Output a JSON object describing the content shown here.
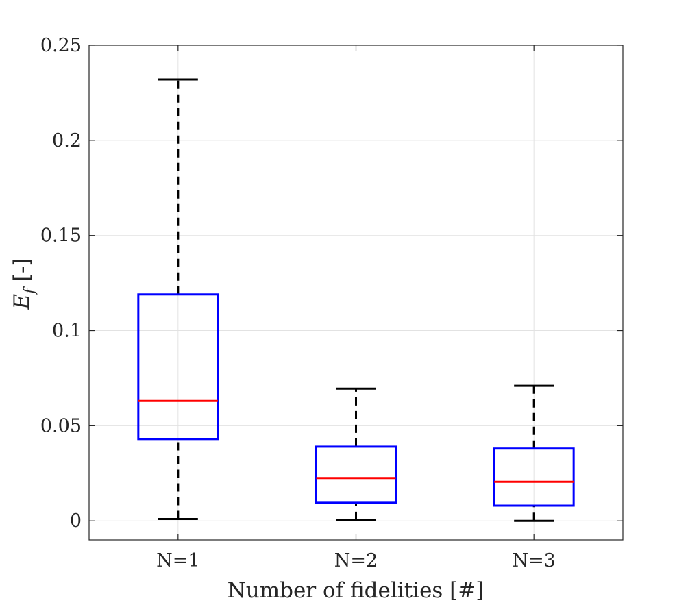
{
  "chart_data": {
    "type": "box",
    "title": "",
    "xlabel": "Number of fidelities [#]",
    "ylabel": {
      "symbol": "E",
      "subscript": "f",
      "unit": "[-]"
    },
    "ylim": [
      -0.01,
      0.25
    ],
    "yticks": [
      0,
      0.05,
      0.1,
      0.15,
      0.2,
      0.25
    ],
    "ytick_labels": [
      "0",
      "0.05",
      "0.1",
      "0.15",
      "0.2",
      "0.25"
    ],
    "grid": true,
    "categories": [
      "N=1",
      "N=2",
      "N=3"
    ],
    "boxes": [
      {
        "label": "N=1",
        "whisker_low": 0.001,
        "q1": 0.043,
        "median": 0.063,
        "q3": 0.119,
        "whisker_high": 0.232
      },
      {
        "label": "N=2",
        "whisker_low": 0.0005,
        "q1": 0.0095,
        "median": 0.0225,
        "q3": 0.039,
        "whisker_high": 0.0695
      },
      {
        "label": "N=3",
        "whisker_low": 0.0,
        "q1": 0.008,
        "median": 0.0205,
        "q3": 0.038,
        "whisker_high": 0.071
      }
    ],
    "colors": {
      "box": "#0000ff",
      "median": "#ff0000",
      "whisker": "#000000",
      "grid": "#e2e2e2",
      "axis": "#262626"
    }
  }
}
